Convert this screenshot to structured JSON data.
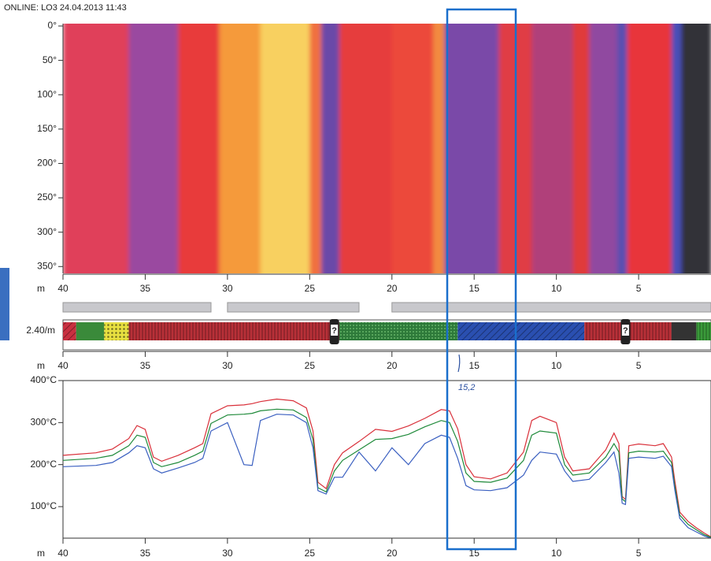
{
  "header": {
    "title": "ONLINE: LO3 24.04.2013 11:43"
  },
  "annotations": {
    "note": "15,2"
  },
  "chart_data": [
    {
      "type": "heatmap",
      "x_label": "m",
      "xlim": [
        40,
        0.6
      ],
      "xticks": [
        40,
        35,
        30,
        25,
        20,
        15,
        10,
        5
      ],
      "ylim": [
        0,
        360
      ],
      "yticks": [
        {
          "value": 0,
          "label": "0°"
        },
        {
          "value": 50,
          "label": "50°"
        },
        {
          "value": 100,
          "label": "100°"
        },
        {
          "value": 150,
          "label": "150°"
        },
        {
          "value": 200,
          "label": "200°"
        },
        {
          "value": 250,
          "label": "250°"
        },
        {
          "value": 300,
          "label": "300°"
        },
        {
          "value": 350,
          "label": "350°"
        }
      ],
      "bands": [
        {
          "x": [
            40,
            36
          ],
          "color": "#e0405a"
        },
        {
          "x": [
            36,
            33
          ],
          "color": "#9a4aa0"
        },
        {
          "x": [
            33,
            30.5
          ],
          "color": "#e83a3a"
        },
        {
          "x": [
            30.5,
            28
          ],
          "color": "#f59a3a"
        },
        {
          "x": [
            28,
            25
          ],
          "color": "#f8d060"
        },
        {
          "x": [
            25,
            24.3
          ],
          "color": "#f07040"
        },
        {
          "x": [
            24.3,
            23.2
          ],
          "color": "#6a4aa8"
        },
        {
          "x": [
            23.2,
            20
          ],
          "color": "#e63c3c"
        },
        {
          "x": [
            20,
            17.5
          ],
          "color": "#ec4a3a"
        },
        {
          "x": [
            17.5,
            16.8
          ],
          "color": "#f28a40"
        },
        {
          "x": [
            16.8,
            13.5
          ],
          "color": "#7a4aa8"
        },
        {
          "x": [
            13.5,
            11.5
          ],
          "color": "#e03c44"
        },
        {
          "x": [
            11.5,
            9
          ],
          "color": "#b0407a"
        },
        {
          "x": [
            9,
            8
          ],
          "color": "#e03a3a"
        },
        {
          "x": [
            8,
            6.3
          ],
          "color": "#9048a0"
        },
        {
          "x": [
            6.3,
            5.7
          ],
          "color": "#5a50b0"
        },
        {
          "x": [
            5.7,
            3
          ],
          "color": "#e8363a"
        },
        {
          "x": [
            3,
            2.4
          ],
          "color": "#4a50b8"
        },
        {
          "x": [
            2.4,
            0.6
          ],
          "color": "#303038"
        }
      ]
    },
    {
      "type": "strip",
      "x_label": "m",
      "label": "2.40/m",
      "xlim": [
        40,
        0.6
      ],
      "xticks": [
        40,
        35,
        30,
        25,
        20,
        15,
        10,
        5
      ],
      "bars": [
        [
          40,
          31
        ],
        [
          30,
          22
        ],
        [
          20,
          0.6
        ]
      ],
      "bar_color": "#c8c8cc",
      "segments": [
        {
          "x": [
            40,
            39.2
          ],
          "color": "#c83040",
          "pattern": "hatch"
        },
        {
          "x": [
            39.2,
            37.5
          ],
          "color": "#3a8a3a",
          "pattern": "solid"
        },
        {
          "x": [
            37.5,
            36
          ],
          "color": "#e8e040",
          "pattern": "dots"
        },
        {
          "x": [
            36,
            23.2
          ],
          "color": "#b83038",
          "pattern": "stripes"
        },
        {
          "x": [
            23.2,
            16
          ],
          "color": "#2e7a3a",
          "pattern": "grid"
        },
        {
          "x": [
            16,
            8.3
          ],
          "color": "#2a4fb0",
          "pattern": "hatch"
        },
        {
          "x": [
            8.3,
            3
          ],
          "color": "#b83038",
          "pattern": "stripes"
        },
        {
          "x": [
            3,
            1.5
          ],
          "color": "#333333",
          "pattern": "solid"
        },
        {
          "x": [
            1.5,
            0.6
          ],
          "color": "#3a9a3a",
          "pattern": "stripes"
        }
      ],
      "markers": [
        {
          "x": 23.5,
          "label": "?"
        },
        {
          "x": 5.8,
          "label": "?"
        }
      ]
    },
    {
      "type": "line",
      "x_label": "m",
      "xlim": [
        40,
        0.6
      ],
      "xticks": [
        40,
        35,
        30,
        25,
        20,
        15,
        10,
        5
      ],
      "ylim": [
        25,
        400
      ],
      "yticks": [
        {
          "value": 100,
          "label": "100°C"
        },
        {
          "value": 200,
          "label": "200°C"
        },
        {
          "value": 300,
          "label": "300°C"
        },
        {
          "value": 400,
          "label": "400°C"
        }
      ],
      "x": [
        40,
        38,
        37,
        36,
        35.5,
        35,
        34.5,
        34,
        33,
        32,
        31.5,
        31,
        30,
        29,
        28.5,
        28,
        27,
        26,
        25.2,
        24.8,
        24.5,
        24,
        23.5,
        23,
        22,
        21,
        20,
        19,
        18,
        17,
        16.5,
        16,
        15.5,
        15,
        14,
        13,
        12,
        11.5,
        11,
        10,
        9.5,
        9,
        8,
        7,
        6.5,
        6.2,
        6,
        5.8,
        5.6,
        5,
        4,
        3.5,
        3,
        2.8,
        2.5,
        2,
        1.5,
        1,
        0.6
      ],
      "series": [
        {
          "color": "#d9303a",
          "values": [
            222,
            228,
            237,
            262,
            293,
            284,
            218,
            208,
            222,
            240,
            250,
            321,
            340,
            342,
            345,
            350,
            356,
            352,
            335,
            280,
            158,
            143,
            200,
            228,
            255,
            284,
            279,
            292,
            310,
            331,
            328,
            285,
            200,
            171,
            166,
            180,
            230,
            305,
            315,
            300,
            218,
            185,
            190,
            235,
            275,
            250,
            124,
            117,
            245,
            249,
            245,
            250,
            218,
            162,
            87,
            65,
            50,
            37,
            28
          ]
        },
        {
          "color": "#1f8a3a",
          "values": [
            210,
            215,
            222,
            245,
            270,
            265,
            205,
            195,
            205,
            222,
            232,
            298,
            318,
            320,
            322,
            328,
            332,
            330,
            312,
            260,
            145,
            135,
            185,
            210,
            235,
            260,
            262,
            272,
            290,
            305,
            300,
            255,
            180,
            160,
            158,
            168,
            210,
            270,
            280,
            275,
            200,
            175,
            180,
            218,
            250,
            230,
            118,
            112,
            228,
            232,
            230,
            232,
            205,
            150,
            80,
            58,
            45,
            33,
            27
          ]
        },
        {
          "color": "#3a5fc0",
          "values": [
            195,
            198,
            205,
            228,
            245,
            240,
            190,
            180,
            192,
            205,
            215,
            280,
            300,
            200,
            198,
            305,
            320,
            318,
            300,
            240,
            138,
            130,
            170,
            170,
            230,
            185,
            240,
            200,
            250,
            270,
            265,
            215,
            150,
            140,
            138,
            145,
            175,
            210,
            230,
            225,
            185,
            160,
            165,
            205,
            230,
            180,
            108,
            105,
            215,
            218,
            215,
            220,
            195,
            140,
            72,
            50,
            40,
            30,
            25
          ]
        }
      ]
    }
  ]
}
